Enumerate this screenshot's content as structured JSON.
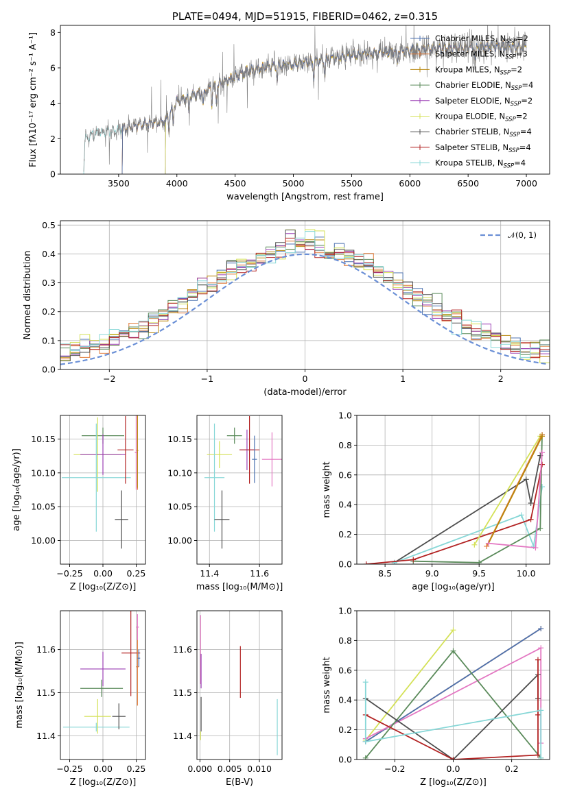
{
  "colors": {
    "Chabrier MILES": "#4c72b0",
    "Salpeter MILES": "#e07b39",
    "Kroupa MILES": "#b8860b",
    "Chabrier ELODIE": "#5a8a5a",
    "Salpeter ELODIE": "#9b3fb5",
    "Kroupa ELODIE": "#d4e157",
    "Chabrier STELIB": "#4d4d4d",
    "Salpeter STELIB": "#b22222",
    "Kroupa STELIB": "#87d7d7",
    "pink": "#e377c2",
    "normal": "#6a8fd6"
  },
  "chart_data": [
    {
      "id": "spectrum",
      "type": "line",
      "title": "PLATE=0494, MJD=51915, FIBERID=0462, z=0.315",
      "xlabel": "wavelength [Angstrom, rest frame]",
      "ylabel": "Flux [fλ10⁻¹⁷ erg cm⁻² s⁻¹ A⁻¹]",
      "xlim": [
        3000,
        7200
      ],
      "ylim": [
        0,
        8.4
      ],
      "xticks": [
        3500,
        4000,
        4500,
        5000,
        5500,
        6000,
        6500,
        7000
      ],
      "yticks": [
        0,
        2,
        4,
        6,
        8
      ],
      "data_start": 3200,
      "data_end": 7000,
      "legend_position": "upper-right",
      "legend": [
        {
          "name": "Chabrier MILES",
          "nssp": "2"
        },
        {
          "name": "Salpeter MILES",
          "nssp": "3"
        },
        {
          "name": "Kroupa MILES",
          "nssp": "2"
        },
        {
          "name": "Chabrier ELODIE",
          "nssp": "4"
        },
        {
          "name": "Salpeter ELODIE",
          "nssp": "2"
        },
        {
          "name": "Kroupa ELODIE",
          "nssp": "2"
        },
        {
          "name": "Chabrier STELIB",
          "nssp": "4"
        },
        {
          "name": "Salpeter STELIB",
          "nssp": "4"
        },
        {
          "name": "Kroupa STELIB",
          "nssp": "4"
        }
      ],
      "continuum": [
        [
          3200,
          0
        ],
        [
          3210,
          2.0
        ],
        [
          3300,
          2.3
        ],
        [
          3500,
          2.5
        ],
        [
          3700,
          2.8
        ],
        [
          3900,
          3.0
        ],
        [
          3950,
          3.6
        ],
        [
          4000,
          4.1
        ],
        [
          4200,
          4.6
        ],
        [
          4400,
          5.2
        ],
        [
          4600,
          5.8
        ],
        [
          4800,
          6.1
        ],
        [
          5000,
          6.2
        ],
        [
          5200,
          6.4
        ],
        [
          5500,
          6.7
        ],
        [
          5800,
          6.9
        ],
        [
          6000,
          7.0
        ],
        [
          6300,
          7.1
        ],
        [
          6600,
          7.2
        ],
        [
          7000,
          7.2
        ]
      ]
    },
    {
      "id": "residuals",
      "type": "line",
      "xlabel": "(data-model)/error",
      "ylabel": "Normed distribution",
      "xlim": [
        -2.5,
        2.5
      ],
      "ylim": [
        0,
        0.515
      ],
      "xticks": [
        -2,
        -1,
        0,
        1,
        2
      ],
      "yticks": [
        0.0,
        0.1,
        0.2,
        0.3,
        0.4,
        0.5
      ],
      "grid": true,
      "legend_position": "upper-right",
      "normal_label": "𝒩(0, 1)",
      "bin_width": 0.1
    },
    {
      "id": "age-vs-Z",
      "type": "scatter",
      "xlabel": "Z [log₁₀(Z/Z⊙)]",
      "ylabel": "age  [log₁₀(age/yr)]",
      "xlim": [
        -0.32,
        0.32
      ],
      "ylim": [
        9.965,
        10.185
      ],
      "xticks": [
        -0.25,
        0.0,
        0.25
      ],
      "yticks": [
        10.0,
        10.05,
        10.1,
        10.15
      ],
      "grid": true,
      "points": [
        {
          "color": "Chabrier ELODIE",
          "x": 0.0,
          "y": 10.155,
          "xerr": 0.16,
          "yerr": 0.012
        },
        {
          "color": "Kroupa ELODIE",
          "x": -0.04,
          "y": 10.127,
          "xerr": 0.18,
          "yerr": 0.055
        },
        {
          "color": "Salpeter ELODIE",
          "x": 0.0,
          "y": 10.127,
          "xerr": 0.17,
          "yerr": 0.03
        },
        {
          "color": "Kroupa STELIB",
          "x": -0.05,
          "y": 10.093,
          "xerr": 0.26,
          "yerr": 0.08
        },
        {
          "color": "Chabrier STELIB",
          "x": 0.14,
          "y": 10.031,
          "xerr": 0.05,
          "yerr": 0.043
        },
        {
          "color": "Salpeter STELIB",
          "x": 0.17,
          "y": 10.134,
          "xerr": 0.06,
          "yerr": 0.05
        },
        {
          "color": "pink",
          "x": 0.25,
          "y": 10.13,
          "xerr": 0.01,
          "yerr": 0.055
        },
        {
          "color": "Salpeter MILES",
          "x": 0.26,
          "y": 10.133,
          "xerr": 0.005,
          "yerr": 0.058
        },
        {
          "color": "Kroupa MILES",
          "x": 0.26,
          "y": 10.133,
          "xerr": 0.005,
          "yerr": 0.055
        }
      ]
    },
    {
      "id": "age-vs-mass",
      "type": "scatter",
      "xlabel": "mass [log₁₀(M/M⊙)]",
      "xlim": [
        11.35,
        11.69
      ],
      "ylim": [
        9.965,
        10.185
      ],
      "xticks": [
        11.4,
        11.6
      ],
      "yticks": [
        10.0,
        10.05,
        10.1,
        10.15
      ],
      "grid": true,
      "points": [
        {
          "color": "Kroupa ELODIE",
          "x": 11.44,
          "y": 10.127,
          "xerr": 0.05,
          "yerr": 0.02
        },
        {
          "color": "Chabrier ELODIE",
          "x": 11.5,
          "y": 10.155,
          "xerr": 0.03,
          "yerr": 0.012
        },
        {
          "color": "Kroupa STELIB",
          "x": 11.42,
          "y": 10.093,
          "xerr": 0.04,
          "yerr": 0.08
        },
        {
          "color": "Chabrier STELIB",
          "x": 11.45,
          "y": 10.031,
          "xerr": 0.03,
          "yerr": 0.043
        },
        {
          "color": "Salpeter ELODIE",
          "x": 11.55,
          "y": 10.134,
          "xerr": 0.03,
          "yerr": 0.03
        },
        {
          "color": "Salpeter STELIB",
          "x": 11.56,
          "y": 10.134,
          "xerr": 0.04,
          "yerr": 0.05
        },
        {
          "color": "Chabrier MILES",
          "x": 11.58,
          "y": 10.12,
          "xerr": 0.01,
          "yerr": 0.035
        },
        {
          "color": "pink",
          "x": 11.65,
          "y": 10.12,
          "xerr": 0.04,
          "yerr": 0.04
        }
      ]
    },
    {
      "id": "mass-weight-vs-age",
      "type": "line",
      "xlabel": "age  [log₁₀(age/yr)]",
      "ylabel": "mass weight",
      "xlim": [
        8.2,
        10.25
      ],
      "ylim": [
        0,
        1.0
      ],
      "xticks": [
        8.5,
        9.0,
        9.5,
        10.0
      ],
      "yticks": [
        0.0,
        0.2,
        0.4,
        0.6,
        0.8,
        1.0
      ],
      "grid": true,
      "lines": [
        {
          "color": "Chabrier STELIB",
          "points": [
            [
              8.6,
              0.01
            ],
            [
              10.0,
              0.57
            ],
            [
              10.05,
              0.41
            ],
            [
              10.15,
              0.73
            ]
          ]
        },
        {
          "color": "Kroupa STELIB",
          "points": [
            [
              8.6,
              0.01
            ],
            [
              9.95,
              0.33
            ],
            [
              10.08,
              0.12
            ],
            [
              10.17,
              0.52
            ]
          ]
        },
        {
          "color": "Chabrier ELODIE",
          "points": [
            [
              8.8,
              0.02
            ],
            [
              9.5,
              0.01
            ],
            [
              10.15,
              0.24
            ],
            [
              10.17,
              0.87
            ]
          ]
        },
        {
          "color": "Salpeter STELIB",
          "points": [
            [
              8.3,
              0.0
            ],
            [
              8.8,
              0.03
            ],
            [
              10.05,
              0.3
            ],
            [
              10.17,
              0.67
            ]
          ]
        },
        {
          "color": "Kroupa ELODIE",
          "points": [
            [
              9.45,
              0.13
            ],
            [
              10.15,
              0.86
            ]
          ]
        },
        {
          "color": "Salpeter MILES",
          "points": [
            [
              9.58,
              0.12
            ],
            [
              10.17,
              0.87
            ]
          ]
        },
        {
          "color": "Kroupa MILES",
          "points": [
            [
              9.6,
              0.14
            ],
            [
              10.17,
              0.86
            ]
          ]
        },
        {
          "color": "pink",
          "points": [
            [
              9.6,
              0.14
            ],
            [
              10.1,
              0.11
            ],
            [
              10.17,
              0.75
            ]
          ]
        }
      ]
    },
    {
      "id": "mass-vs-Z",
      "type": "scatter",
      "xlabel": "Z [log₁₀(Z/Z⊙)]",
      "ylabel": "mass [log₁₀(M/M⊙)]",
      "xlim": [
        -0.32,
        0.32
      ],
      "ylim": [
        11.345,
        11.69
      ],
      "xticks": [
        -0.25,
        0.0,
        0.25
      ],
      "yticks": [
        11.4,
        11.5,
        11.6
      ],
      "grid": true,
      "points": [
        {
          "color": "Kroupa STELIB",
          "x": -0.05,
          "y": 11.42,
          "xerr": 0.25,
          "yerr": 0.01
        },
        {
          "color": "Kroupa ELODIE",
          "x": -0.04,
          "y": 11.445,
          "xerr": 0.1,
          "yerr": 0.04
        },
        {
          "color": "Chabrier STELIB",
          "x": 0.12,
          "y": 11.445,
          "xerr": 0.05,
          "yerr": 0.03
        },
        {
          "color": "Chabrier ELODIE",
          "x": -0.01,
          "y": 11.51,
          "xerr": 0.16,
          "yerr": 0.02
        },
        {
          "color": "Salpeter ELODIE",
          "x": 0.0,
          "y": 11.555,
          "xerr": 0.17,
          "yerr": 0.04
        },
        {
          "color": "Salpeter STELIB",
          "x": 0.21,
          "y": 11.592,
          "xerr": 0.07,
          "yerr": 0.1
        },
        {
          "color": "Salpeter MILES",
          "x": 0.26,
          "y": 11.56,
          "xerr": 0.01,
          "yerr": 0.09
        },
        {
          "color": "Chabrier MILES",
          "x": 0.27,
          "y": 11.58,
          "xerr": 0.01,
          "yerr": 0.02
        },
        {
          "color": "pink",
          "x": 0.26,
          "y": 11.652,
          "xerr": 0.01,
          "yerr": 0.03
        }
      ]
    },
    {
      "id": "mass-vs-ebv",
      "type": "scatter",
      "xlabel": "E(B-V)",
      "xlim": [
        -0.0005,
        0.0138
      ],
      "ylim": [
        11.345,
        11.69
      ],
      "xticks": [
        0.0,
        0.005,
        0.01
      ],
      "yticks": [
        11.4,
        11.5,
        11.6
      ],
      "grid": true,
      "points": [
        {
          "color": "pink",
          "x": 0.0001,
          "y": 11.6,
          "xerr": 0,
          "yerr": 0.08
        },
        {
          "color": "Salpeter ELODIE",
          "x": 0.0002,
          "y": 11.55,
          "xerr": 0,
          "yerr": 0.04
        },
        {
          "color": "Chabrier STELIB",
          "x": 0.0002,
          "y": 11.45,
          "xerr": 0,
          "yerr": 0.04
        },
        {
          "color": "Kroupa ELODIE",
          "x": 0.0001,
          "y": 11.4,
          "xerr": 0,
          "yerr": 0.01
        },
        {
          "color": "Salpeter STELIB",
          "x": 0.0068,
          "y": 11.548,
          "xerr": 0,
          "yerr": 0.06
        },
        {
          "color": "Kroupa STELIB",
          "x": 0.013,
          "y": 11.42,
          "xerr": 0,
          "yerr": 0.065
        }
      ]
    },
    {
      "id": "mass-weight-vs-Z",
      "type": "line",
      "xlabel": "Z [log₁₀(Z/Z⊙)]",
      "ylabel": "mass weight",
      "xlim": [
        -0.33,
        0.33
      ],
      "ylim": [
        0,
        1.0
      ],
      "xticks": [
        -0.2,
        0.0,
        0.2
      ],
      "yticks": [
        0.0,
        0.2,
        0.4,
        0.6,
        0.8,
        1.0
      ],
      "grid": true,
      "lines": [
        {
          "color": "Kroupa ELODIE",
          "points": [
            [
              -0.3,
              0.13
            ],
            [
              0.0,
              0.87
            ]
          ]
        },
        {
          "color": "Salpeter MILES",
          "points": [
            [
              -0.3,
              0.12
            ],
            [
              0.3,
              0.88
            ]
          ]
        },
        {
          "color": "Chabrier MILES",
          "points": [
            [
              -0.3,
              0.12
            ],
            [
              0.3,
              0.88
            ]
          ]
        },
        {
          "color": "pink",
          "points": [
            [
              -0.3,
              0.14
            ],
            [
              0.3,
              0.75
            ],
            [
              0.3,
              0.11
            ]
          ]
        },
        {
          "color": "Chabrier ELODIE",
          "points": [
            [
              -0.3,
              0.01
            ],
            [
              0.0,
              0.73
            ],
            [
              0.3,
              0.01
            ]
          ]
        },
        {
          "color": "Chabrier STELIB",
          "points": [
            [
              -0.3,
              0.41
            ],
            [
              0.0,
              0.0
            ],
            [
              0.29,
              0.57
            ],
            [
              0.29,
              0.41
            ]
          ]
        },
        {
          "color": "Salpeter STELIB",
          "points": [
            [
              -0.3,
              0.3
            ],
            [
              0.0,
              0.0
            ],
            [
              0.29,
              0.03
            ],
            [
              0.29,
              0.67
            ],
            [
              0.29,
              0.3
            ]
          ]
        },
        {
          "color": "Kroupa STELIB",
          "points": [
            [
              -0.3,
              0.52
            ],
            [
              -0.3,
              0.12
            ],
            [
              0.3,
              0.33
            ],
            [
              0.3,
              0.01
            ]
          ]
        }
      ]
    }
  ]
}
